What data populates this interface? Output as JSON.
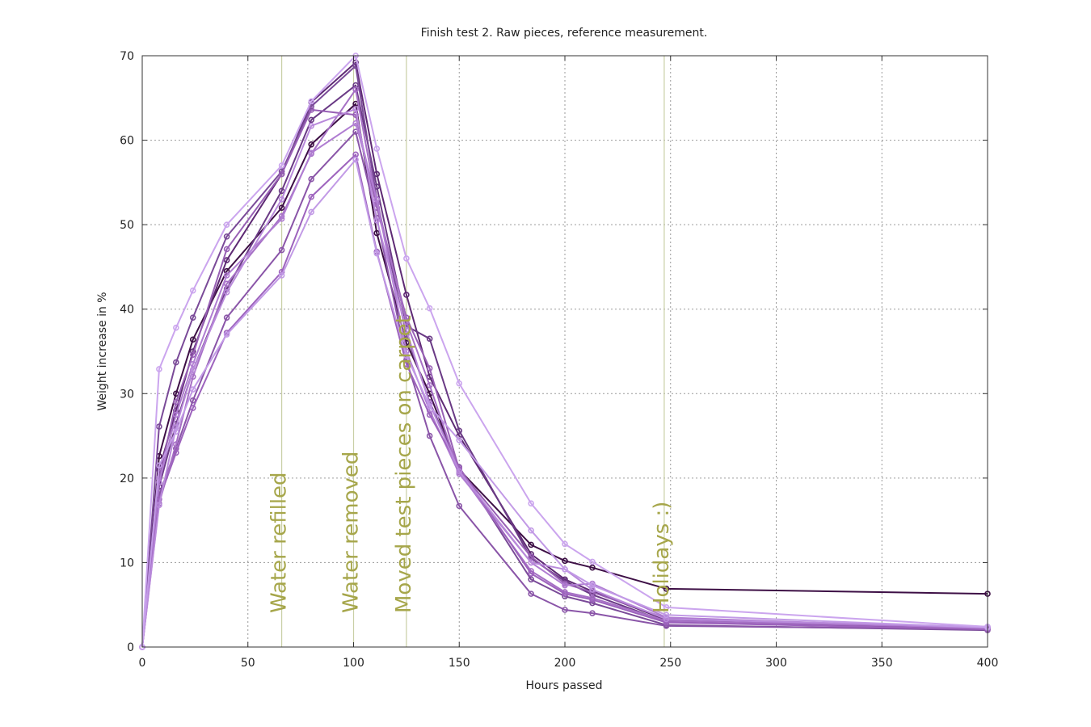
{
  "chart_data": {
    "type": "line",
    "title": "Finish test 2. Raw pieces, reference measurement.",
    "xlabel": "Hours passed",
    "ylabel": "Weight increase in %",
    "xlim": [
      0,
      400
    ],
    "ylim": [
      0,
      70
    ],
    "x_ticks": [
      "0",
      "50",
      "100",
      "150",
      "200",
      "250",
      "300",
      "350",
      "400"
    ],
    "y_ticks": [
      "0",
      "10",
      "20",
      "30",
      "40",
      "50",
      "60",
      "70"
    ],
    "x_tick_values": [
      0,
      50,
      100,
      150,
      200,
      250,
      300,
      350,
      400
    ],
    "y_tick_values": [
      0,
      10,
      20,
      30,
      40,
      50,
      60,
      70
    ],
    "grid": true,
    "x": [
      0,
      8,
      16,
      24,
      40,
      66,
      80,
      101,
      111,
      125,
      136,
      150,
      184,
      200,
      213,
      248,
      400
    ],
    "annotations": [
      {
        "x": 66,
        "text": "Water refilled"
      },
      {
        "x": 100,
        "text": "Water removed"
      },
      {
        "x": 125,
        "text": "Moved test pieces on carpet"
      },
      {
        "x": 247,
        "text": "Holidays :)"
      }
    ],
    "series": [
      {
        "color": "#3d0f45",
        "values": [
          0,
          22.6,
          30.0,
          36.4,
          44.5,
          52.0,
          59.5,
          64.3,
          49.0,
          36.0,
          30.0,
          21.0,
          12.1,
          10.2,
          9.4,
          6.9,
          6.3
        ]
      },
      {
        "color": "#5e2a74",
        "values": [
          0,
          21.0,
          28.0,
          35.0,
          45.8,
          56.0,
          64.5,
          69.2,
          56.0,
          41.7,
          32.0,
          25.0,
          11.0,
          8.0,
          6.6,
          3.2,
          2.3
        ]
      },
      {
        "color": "#6a3a85",
        "values": [
          0,
          19.0,
          26.4,
          32.8,
          42.4,
          54.0,
          62.4,
          66.5,
          54.5,
          38.0,
          36.5,
          25.6,
          10.5,
          7.8,
          6.2,
          3.0,
          2.2
        ]
      },
      {
        "color": "#7a4a98",
        "values": [
          0,
          26.1,
          33.7,
          39.0,
          48.6,
          56.3,
          64.0,
          68.8,
          53.0,
          37.0,
          29.0,
          21.3,
          8.0,
          6.0,
          5.2,
          2.6,
          2.0
        ]
      },
      {
        "color": "#8a55a8",
        "values": [
          0,
          18.0,
          23.5,
          29.2,
          39.0,
          47.0,
          55.4,
          61.0,
          50.8,
          34.0,
          25.0,
          16.7,
          6.3,
          4.4,
          4.0,
          2.5,
          2.1
        ]
      },
      {
        "color": "#9860b5",
        "values": [
          0,
          20.0,
          29.0,
          34.6,
          47.1,
          56.0,
          63.6,
          63.0,
          52.0,
          39.0,
          33.0,
          21.0,
          10.7,
          7.5,
          6.5,
          3.4,
          2.2
        ]
      },
      {
        "color": "#a670c5",
        "values": [
          0,
          17.0,
          24.0,
          32.0,
          43.0,
          51.0,
          58.4,
          66.0,
          52.5,
          38.5,
          31.0,
          20.7,
          9.0,
          6.5,
          5.8,
          3.1,
          2.3
        ]
      },
      {
        "color": "#b07dd2",
        "values": [
          0,
          19.5,
          27.5,
          33.5,
          44.0,
          50.7,
          58.5,
          62.0,
          53.0,
          35.0,
          28.0,
          20.5,
          10.0,
          7.3,
          7.5,
          3.5,
          2.2
        ]
      },
      {
        "color": "#9d63bd",
        "values": [
          0,
          17.5,
          23.0,
          28.3,
          37.2,
          44.4,
          53.3,
          58.3,
          46.8,
          33.5,
          27.5,
          21.2,
          8.7,
          6.3,
          5.6,
          2.9,
          2.1
        ]
      },
      {
        "color": "#b98adb",
        "values": [
          0,
          16.8,
          26.0,
          32.8,
          42.0,
          53.0,
          61.7,
          63.7,
          50.5,
          37.5,
          28.8,
          20.8,
          10.0,
          9.2,
          6.8,
          3.3,
          2.4
        ]
      },
      {
        "color": "#c29ae6",
        "values": [
          0,
          21.5,
          25.5,
          30.5,
          37.0,
          44.0,
          51.5,
          57.7,
          46.6,
          34.5,
          28.5,
          24.5,
          13.8,
          9.2,
          7.3,
          3.8,
          2.3
        ]
      },
      {
        "color": "#cba5ee",
        "values": [
          0,
          32.9,
          37.8,
          42.2,
          50.0,
          57.0,
          64.6,
          70.0,
          59.0,
          46.0,
          40.1,
          31.2,
          17.0,
          12.2,
          10.1,
          4.7,
          2.4
        ]
      }
    ]
  }
}
